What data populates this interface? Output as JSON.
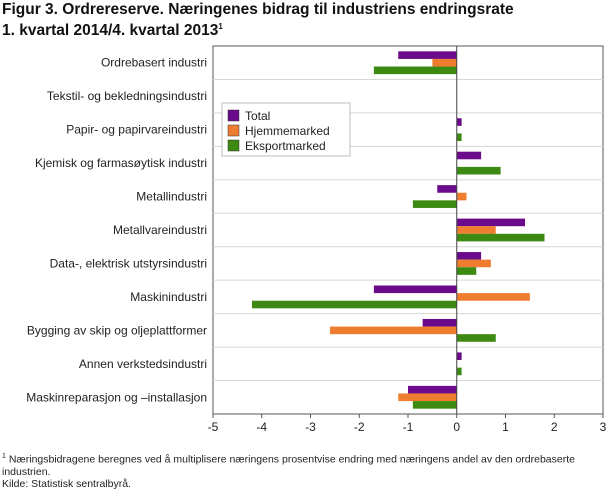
{
  "figure": {
    "title_line1": "Figur 3. Ordrereserve. Næringenes bidrag til industriens endringsrate",
    "title_line2": "1. kvartal 2014/4. kvartal 2013",
    "title_sup": "1",
    "footnote_marker": "1",
    "footnote_text": " Næringsbidragene beregnes ved å multiplisere næringens prosentvise endring med næringens andel av den ordrebaserte industrien.",
    "source": "Kilde: Statistisk sentralbyrå."
  },
  "chart_data": {
    "type": "bar",
    "orientation": "horizontal",
    "categories": [
      "Ordrebasert industri",
      "Tekstil- og bekledningsindustri",
      "Papir- og papirvareindustri",
      "Kjemisk og farmasøytisk industri",
      "Metallindustri",
      "Metallvareindustri",
      "Data-, elektrisk utstyrsindustri",
      "Maskinindustri",
      "Bygging av skip og oljeplattformer",
      "Annen verkstedsindustri",
      "Maskinreparasjon og –installasjon"
    ],
    "series": [
      {
        "name": "Total",
        "color": "#6b0a8a",
        "values": [
          -1.2,
          0.0,
          0.1,
          0.5,
          -0.4,
          1.4,
          0.5,
          -1.7,
          -0.7,
          0.1,
          -1.0
        ]
      },
      {
        "name": "Hjemmemarked",
        "color": "#ee7d2f",
        "values": [
          -0.5,
          0.0,
          0.0,
          0.0,
          0.2,
          0.8,
          0.7,
          1.5,
          -2.6,
          0.0,
          -1.2
        ]
      },
      {
        "name": "Eksportmarked",
        "color": "#3d8a12",
        "values": [
          -1.7,
          0.0,
          0.1,
          0.9,
          -0.9,
          1.8,
          0.4,
          -4.2,
          0.8,
          0.1,
          -0.9
        ]
      }
    ],
    "xlim": [
      -5,
      3
    ],
    "xticks": [
      -5,
      -4,
      -3,
      -2,
      -1,
      0,
      1,
      2,
      3
    ],
    "grid": "horizontal separators",
    "legend_position": "upper-left-center"
  }
}
